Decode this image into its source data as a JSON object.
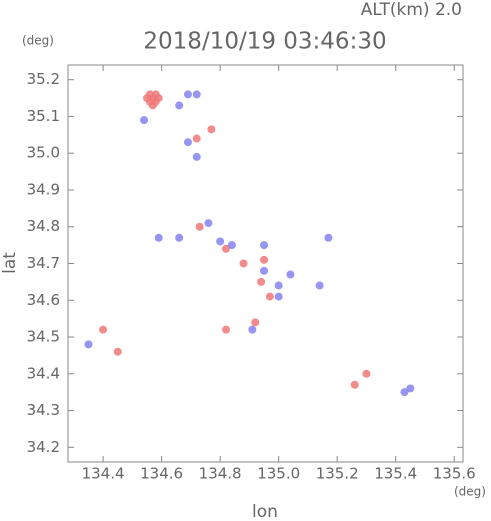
{
  "chart_data": {
    "type": "scatter",
    "title": "2018/10/19 03:46:30",
    "subtitle": "ALT(km) 2.0",
    "x_label": "lon",
    "x_unit": "(deg)",
    "y_label": "lat",
    "y_unit": "(deg)",
    "xlim": [
      134.28,
      135.63
    ],
    "ylim": [
      34.16,
      35.24
    ],
    "xticks": [
      134.4,
      134.6,
      134.8,
      {
        "value": 135,
        "label": "135.0"
      },
      135.2,
      135.4,
      135.6
    ],
    "yticks": [
      34.2,
      34.3,
      34.4,
      34.5,
      34.6,
      34.7,
      34.8,
      34.9,
      {
        "value": 35,
        "label": "35.0"
      },
      35.1,
      35.2
    ],
    "series": [
      {
        "color": "#f07878",
        "x": [
          134.57,
          134.56,
          134.58,
          134.57,
          134.59,
          134.55,
          134.58,
          134.56,
          134.77,
          134.72,
          134.73,
          134.82,
          134.88,
          134.94,
          134.97,
          134.92,
          134.82,
          134.4,
          134.45,
          135.26,
          135.3,
          134.95
        ],
        "y": [
          35.15,
          35.14,
          35.14,
          35.13,
          35.15,
          35.15,
          35.16,
          35.16,
          35.065,
          35.04,
          34.8,
          34.74,
          34.7,
          34.65,
          34.61,
          34.54,
          34.52,
          34.52,
          34.46,
          34.37,
          34.4,
          34.71
        ]
      },
      {
        "color": "#8484f0",
        "x": [
          134.66,
          134.54,
          134.69,
          134.72,
          134.69,
          134.72,
          134.59,
          134.66,
          134.76,
          134.8,
          134.84,
          134.95,
          134.95,
          135.04,
          135.0,
          135.0,
          134.91,
          135.14,
          135.17,
          134.35,
          135.45,
          135.43
        ],
        "y": [
          35.13,
          35.09,
          35.16,
          35.16,
          35.03,
          34.99,
          34.77,
          34.77,
          34.81,
          34.76,
          34.75,
          34.75,
          34.68,
          34.67,
          34.64,
          34.61,
          34.52,
          34.64,
          34.77,
          34.48,
          34.36,
          34.35
        ]
      }
    ]
  }
}
